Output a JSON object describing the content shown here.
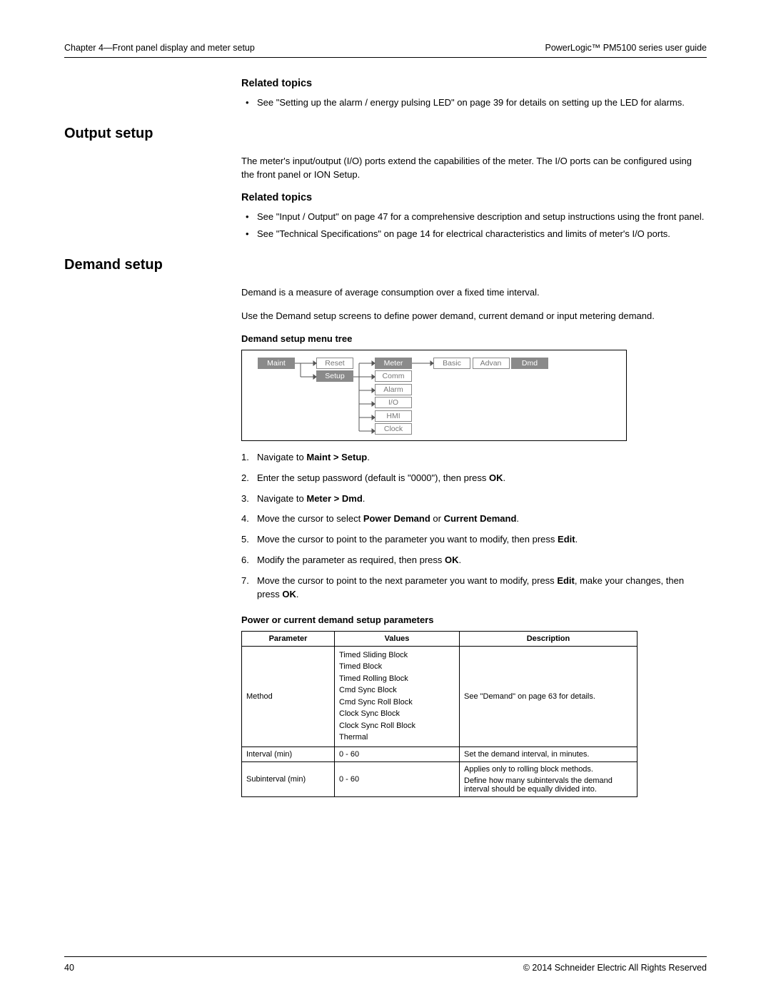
{
  "header": {
    "left": "Chapter 4—Front panel display and meter setup",
    "right": "PowerLogic™ PM5100 series user guide"
  },
  "related1": {
    "heading": "Related topics",
    "bullet": "See \"Setting up the alarm / energy pulsing LED\" on page 39 for details on setting up the LED for alarms."
  },
  "output": {
    "heading": "Output setup",
    "para": "The meter's input/output (I/O) ports extend the capabilities of the meter. The I/O ports can be configured using the front panel or ION Setup.",
    "related_heading": "Related topics",
    "bullets": [
      "See \"Input / Output\" on page 47 for a comprehensive description and setup instructions using the front panel.",
      "See \"Technical Specifications\" on page 14 for electrical characteristics and limits of meter's I/O ports."
    ]
  },
  "demand": {
    "heading": "Demand setup",
    "para1": "Demand is a measure of average consumption over a fixed time interval.",
    "para2": "Use the Demand setup screens to define power demand, current demand or input metering demand.",
    "tree_caption": "Demand setup menu tree",
    "menu": {
      "col1": [
        "Maint"
      ],
      "col2": [
        "Reset",
        "Setup"
      ],
      "col3": [
        "Meter",
        "Comm",
        "Alarm",
        "I/O",
        "HMI",
        "Clock"
      ],
      "col4": [
        "Basic",
        "Advan",
        "Dmd"
      ],
      "active": [
        "Maint",
        "Setup",
        "Meter",
        "Dmd"
      ]
    },
    "steps": [
      {
        "pre": "Navigate to ",
        "b": "Maint > Setup",
        "post": "."
      },
      {
        "pre": "Enter the setup password (default is \"0000\"), then press ",
        "b": "OK",
        "post": "."
      },
      {
        "pre": "Navigate to ",
        "b": "Meter > Dmd",
        "post": "."
      },
      {
        "pre": "Move the cursor to select ",
        "b": "Power Demand",
        "mid": " or ",
        "b2": "Current Demand",
        "post": "."
      },
      {
        "pre": "Move the cursor to point to the parameter you want to modify, then press ",
        "b": "Edit",
        "post": "."
      },
      {
        "pre": "Modify the parameter as required, then press ",
        "b": "OK",
        "post": "."
      },
      {
        "pre": "Move the cursor to point to the next parameter you want to modify, press ",
        "b": "Edit",
        "mid": ", make your changes, then press ",
        "b2": "OK",
        "post": "."
      }
    ],
    "param_caption": "Power or current demand setup parameters",
    "table": {
      "headers": [
        "Parameter",
        "Values",
        "Description"
      ],
      "method_values": [
        "Timed Sliding Block",
        "Timed Block",
        "Timed Rolling Block",
        "Cmd Sync Block",
        "Cmd Sync Roll Block",
        "Clock Sync Block",
        "Clock Sync Roll Block",
        "Thermal"
      ],
      "rows": [
        {
          "p": "Method",
          "v": "__MULTI__",
          "d": "See \"Demand\" on page 63 for details."
        },
        {
          "p": "Interval (min)",
          "v": "0 - 60",
          "d": "Set the demand interval, in minutes."
        },
        {
          "p": "Subinterval (min)",
          "v": "0 - 60",
          "d": "Applies only to rolling block methods.\nDefine how many subintervals the demand interval should be equally divided into."
        }
      ]
    }
  },
  "footer": {
    "page": "40",
    "copyright": "© 2014 Schneider Electric All Rights Reserved"
  },
  "colors": {
    "text": "#000000",
    "muted": "#777777",
    "box_active_bg": "#8a8a8a",
    "border": "#000000"
  }
}
